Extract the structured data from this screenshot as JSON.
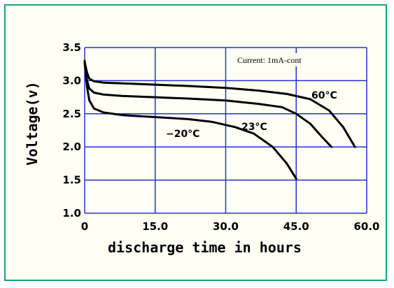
{
  "chart_data": {
    "type": "line",
    "title": "",
    "xlabel": "discharge time in hours",
    "ylabel": "Voltage(v)",
    "xlim": [
      0,
      60
    ],
    "ylim": [
      1.0,
      3.5
    ],
    "xticks": [
      0,
      15,
      30,
      45,
      60
    ],
    "xtick_labels": [
      "0",
      "15.0",
      "30.0",
      "45.0",
      "60.0"
    ],
    "yticks": [
      1.0,
      1.5,
      2.0,
      2.5,
      3.0,
      3.5
    ],
    "ytick_labels": [
      "1.0",
      "1.5",
      "2.0",
      "2.5",
      "3.0",
      "3.5"
    ],
    "grid": true,
    "annotation": "Current: 1mA-cont",
    "series": [
      {
        "name": "60°C",
        "x": [
          0,
          0.5,
          1,
          2,
          4,
          8,
          15,
          22,
          30,
          37,
          43,
          48,
          52,
          55,
          57.5
        ],
        "y": [
          3.28,
          3.12,
          3.03,
          2.99,
          2.97,
          2.96,
          2.94,
          2.92,
          2.89,
          2.85,
          2.8,
          2.72,
          2.55,
          2.3,
          2.0
        ]
      },
      {
        "name": "23°C",
        "x": [
          0,
          0.5,
          1,
          2,
          4,
          8,
          15,
          22,
          30,
          37,
          42,
          45,
          48,
          50.5,
          52.5
        ],
        "y": [
          3.25,
          3.0,
          2.88,
          2.82,
          2.79,
          2.77,
          2.75,
          2.73,
          2.7,
          2.65,
          2.6,
          2.5,
          2.35,
          2.15,
          2.0
        ]
      },
      {
        "name": "-20°C",
        "x": [
          0,
          0.5,
          1,
          2,
          4,
          8,
          15,
          22,
          27,
          32,
          36,
          40,
          43,
          45
        ],
        "y": [
          3.3,
          2.9,
          2.7,
          2.58,
          2.52,
          2.48,
          2.45,
          2.42,
          2.38,
          2.3,
          2.2,
          2.0,
          1.75,
          1.52
        ]
      }
    ],
    "series_labels": [
      "60°C",
      "23°C",
      "−20°C"
    ],
    "colors": {
      "grid": "#2233cc",
      "curve": "#000000",
      "border": "#1aa37a",
      "background": "#fffff4"
    }
  }
}
